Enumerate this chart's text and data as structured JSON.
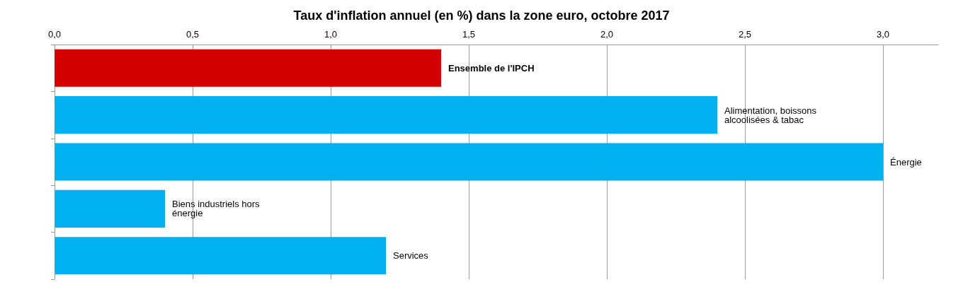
{
  "chart_data": {
    "type": "bar",
    "orientation": "horizontal",
    "title": "Taux d'inflation annuel (en %) dans la zone euro, octobre 2017",
    "categories": [
      "Ensemble de l'IPCH",
      "Alimentation, boissons alcoolisées & tabac",
      "Énergie",
      "Biens industriels hors énergie",
      "Services"
    ],
    "values": [
      1.4,
      2.4,
      3.0,
      0.4,
      1.2
    ],
    "colors": [
      "#d20000",
      "#00b0f0",
      "#00b0f0",
      "#00b0f0",
      "#00b0f0"
    ],
    "xlim": [
      0,
      3.2
    ],
    "xticks": [
      {
        "value": 0,
        "label": "0,0"
      },
      {
        "value": 0.5,
        "label": "0,5"
      },
      {
        "value": 1,
        "label": "1,0"
      },
      {
        "value": 1.5,
        "label": "1,5"
      },
      {
        "value": 2,
        "label": "2,0"
      },
      {
        "value": 2.5,
        "label": "2,5"
      },
      {
        "value": 3,
        "label": "3,0"
      }
    ],
    "grid": "x"
  }
}
